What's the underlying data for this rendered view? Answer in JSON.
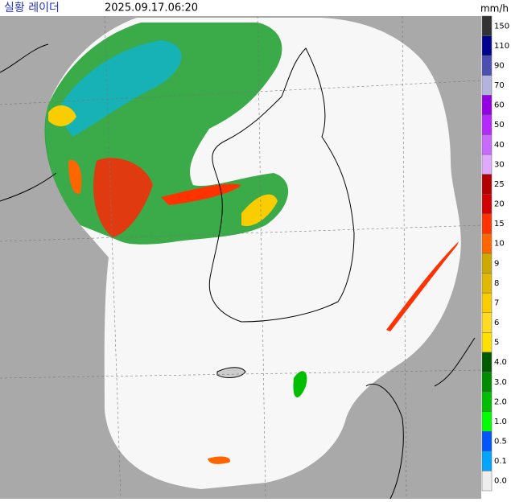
{
  "header": {
    "title": "실황 레이더",
    "time": "2025.09.17.06:20",
    "unit": "mm/h"
  },
  "legend": {
    "items": [
      {
        "label": "150",
        "color": "#333333"
      },
      {
        "label": "110",
        "color": "#000390"
      },
      {
        "label": "90",
        "color": "#4c4eb1"
      },
      {
        "label": "70",
        "color": "#b3b4de"
      },
      {
        "label": "60",
        "color": "#9300e4"
      },
      {
        "label": "50",
        "color": "#b329ff"
      },
      {
        "label": "40",
        "color": "#c969ff"
      },
      {
        "label": "30",
        "color": "#e0a9ff"
      },
      {
        "label": "25",
        "color": "#b40000"
      },
      {
        "label": "20",
        "color": "#d20000"
      },
      {
        "label": "15",
        "color": "#ff3200"
      },
      {
        "label": "10",
        "color": "#ff6600"
      },
      {
        "label": "9",
        "color": "#ccaa00"
      },
      {
        "label": "8",
        "color": "#e0b900"
      },
      {
        "label": "7",
        "color": "#f9cd00"
      },
      {
        "label": "6",
        "color": "#ffdc1f"
      },
      {
        "label": "5",
        "color": "#ffe100"
      },
      {
        "label": "4.0",
        "color": "#005a00"
      },
      {
        "label": "3.0",
        "color": "#008c00"
      },
      {
        "label": "2.0",
        "color": "#00be00"
      },
      {
        "label": "1.0",
        "color": "#00ff00"
      },
      {
        "label": "0.5",
        "color": "#0055ff"
      },
      {
        "label": "0.1",
        "color": "#00a5ff"
      },
      {
        "label": "0.0",
        "color": "#eeeeee"
      }
    ]
  }
}
